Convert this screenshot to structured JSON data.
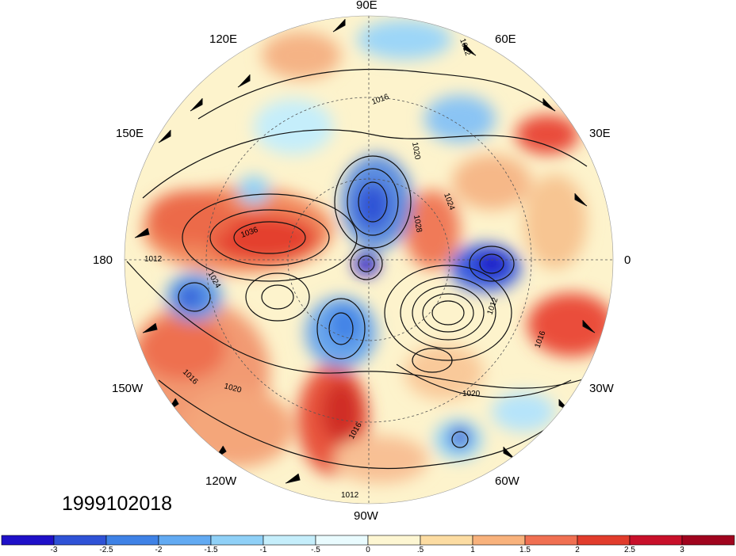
{
  "timestamp": "1999102018",
  "longitude_labels": {
    "top": "90E",
    "upper_left": "120E",
    "upper_right": "60E",
    "mid_left": "150E",
    "mid_right": "30E",
    "left": "180",
    "right": "0",
    "lower_left": "150W",
    "lower_right": "30W",
    "bottom_left": "120W",
    "bottom_right": "60W",
    "bottom": "90W"
  },
  "contour_labels": [
    "1012",
    "1016",
    "1020",
    "1024",
    "1028",
    "1036",
    "1012",
    "1024",
    "1016",
    "1020",
    "1016",
    "1012",
    "1016",
    "1020",
    "1012"
  ],
  "colorbar": {
    "ticks": [
      "-3",
      "-2.5",
      "-2",
      "-1.5",
      "-1",
      "-.5",
      "0",
      ".5",
      "1",
      "1.5",
      "2",
      "2.5",
      "3"
    ],
    "colors": [
      "#1f10c8",
      "#2f52d6",
      "#3f82e6",
      "#62aaf2",
      "#8fd0f7",
      "#c5eefb",
      "#e9fbfe",
      "#fdf6d2",
      "#fcdca2",
      "#f8b27c",
      "#f07052",
      "#e13c2c",
      "#c8102a",
      "#a0041e"
    ]
  }
}
